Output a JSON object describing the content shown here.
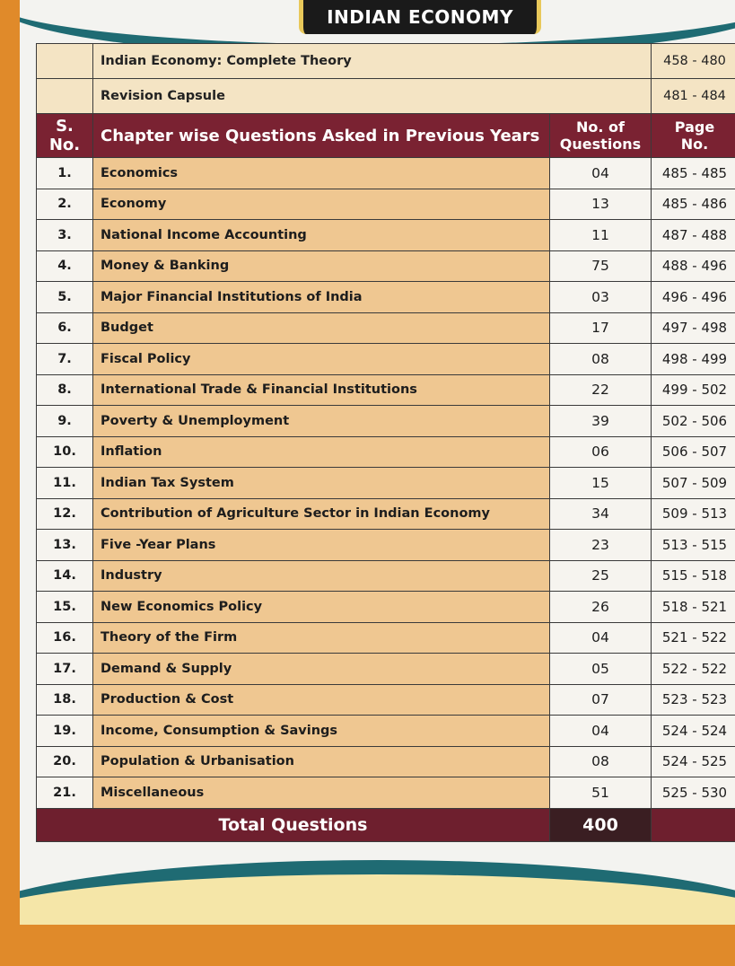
{
  "header": {
    "title": "INDIAN ECONOMY"
  },
  "intro_rows": [
    {
      "label": "Indian Economy: Complete Theory",
      "pages": "458 - 480"
    },
    {
      "label": "Revision Capsule",
      "pages": "481 - 484"
    }
  ],
  "columns": {
    "sno": "S. No.",
    "chapter": "Chapter wise Questions Asked in Previous Years",
    "questions_line1": "No. of",
    "questions_line2": "Questions",
    "pages": "Page No."
  },
  "rows": [
    {
      "sno": "1.",
      "chapter": "Economics",
      "questions": "04",
      "pages": "485 - 485"
    },
    {
      "sno": "2.",
      "chapter": "Economy",
      "questions": "13",
      "pages": "485 - 486"
    },
    {
      "sno": "3.",
      "chapter": "National Income Accounting",
      "questions": "11",
      "pages": "487 - 488"
    },
    {
      "sno": "4.",
      "chapter": "Money & Banking",
      "questions": "75",
      "pages": "488 - 496"
    },
    {
      "sno": "5.",
      "chapter": "Major Financial Institutions of India",
      "questions": "03",
      "pages": "496 - 496"
    },
    {
      "sno": "6.",
      "chapter": "Budget",
      "questions": "17",
      "pages": "497 - 498"
    },
    {
      "sno": "7.",
      "chapter": "Fiscal Policy",
      "questions": "08",
      "pages": "498 - 499"
    },
    {
      "sno": "8.",
      "chapter": "International Trade & Financial Institutions",
      "questions": "22",
      "pages": "499 - 502"
    },
    {
      "sno": "9.",
      "chapter": "Poverty & Unemployment",
      "questions": "39",
      "pages": "502 - 506"
    },
    {
      "sno": "10.",
      "chapter": "Inflation",
      "questions": "06",
      "pages": "506 - 507"
    },
    {
      "sno": "11.",
      "chapter": "Indian Tax System",
      "questions": "15",
      "pages": "507 - 509"
    },
    {
      "sno": "12.",
      "chapter": "Contribution of Agriculture Sector in Indian Economy",
      "questions": "34",
      "pages": "509 - 513"
    },
    {
      "sno": "13.",
      "chapter": "Five -Year Plans",
      "questions": "23",
      "pages": "513 - 515"
    },
    {
      "sno": "14.",
      "chapter": "Industry",
      "questions": "25",
      "pages": "515 - 518"
    },
    {
      "sno": "15.",
      "chapter": "New Economics Policy",
      "questions": "26",
      "pages": "518 - 521"
    },
    {
      "sno": "16.",
      "chapter": "Theory of the Firm",
      "questions": "04",
      "pages": "521 - 522"
    },
    {
      "sno": "17.",
      "chapter": "Demand & Supply",
      "questions": "05",
      "pages": "522 - 522"
    },
    {
      "sno": "18.",
      "chapter": "Production & Cost",
      "questions": "07",
      "pages": "523 - 523"
    },
    {
      "sno": "19.",
      "chapter": "Income, Consumption & Savings",
      "questions": "04",
      "pages": "524 - 524"
    },
    {
      "sno": "20.",
      "chapter": "Population & Urbanisation",
      "questions": "08",
      "pages": "524 - 525"
    },
    {
      "sno": "21.",
      "chapter": "Miscellaneous",
      "questions": "51",
      "pages": "525 - 530"
    }
  ],
  "total": {
    "label": "Total Questions",
    "value": "400"
  },
  "colors": {
    "header_maroon": "#7a2232",
    "chapter_cell": "#efc791",
    "intro_cell": "#f4e4c4",
    "teal_accent": "#1f6b73",
    "page_orange": "#e08a2a"
  }
}
